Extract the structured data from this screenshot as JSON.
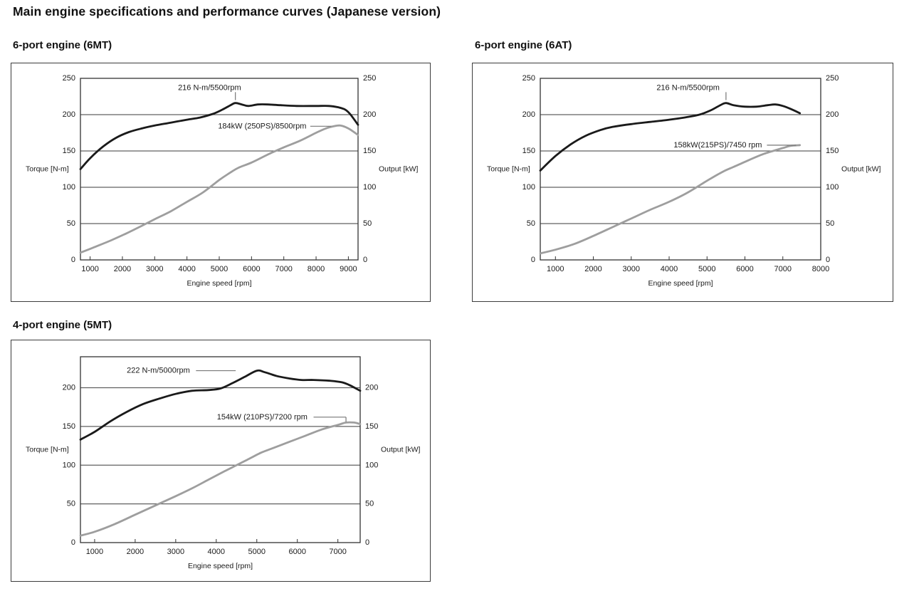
{
  "page": {
    "title": "Main engine specifications and performance curves (Japanese version)"
  },
  "colors": {
    "torque_curve": "#1a1a1a",
    "power_curve": "#9e9e9e",
    "grid": "#606060",
    "axis": "#333333",
    "leader": "#777777",
    "text": "#1a1a1a"
  },
  "chart_data": [
    {
      "type": "line",
      "title": "6-port engine (6MT)",
      "xlabel": "Engine speed [rpm]",
      "ylabel_left": "Torque [N-m]",
      "ylabel_right": "Output [kW]",
      "xlim": [
        700,
        9300
      ],
      "ylim": [
        0,
        250
      ],
      "x_ticks": [
        1000,
        2000,
        3000,
        4000,
        5000,
        6000,
        7000,
        8000,
        9000
      ],
      "y_ticks": [
        0,
        50,
        100,
        150,
        200,
        250
      ],
      "grid": "horizontal",
      "annotations": [
        {
          "name": "torque-peak-label",
          "text": "216 N-m/5500rpm",
          "label": {
            "rpm": 4700,
            "value": 237,
            "anchor": "middle"
          },
          "lines": [
            [
              [
                5500,
                231
              ],
              [
                5500,
                220
              ]
            ]
          ]
        },
        {
          "name": "power-peak-label",
          "text": "184kW (250PS)/8500rpm",
          "label": {
            "rpm": 7700,
            "value": 184,
            "anchor": "end"
          },
          "lines": [
            [
              [
                7820,
                184
              ],
              [
                8470,
                184
              ]
            ]
          ]
        }
      ],
      "series": [
        {
          "name": "torque",
          "unit": "N-m",
          "points": [
            [
              700,
              125
            ],
            [
              1000,
              140
            ],
            [
              1400,
              156
            ],
            [
              1800,
              168
            ],
            [
              2200,
              176
            ],
            [
              2600,
              181
            ],
            [
              3000,
              185
            ],
            [
              3500,
              189
            ],
            [
              4000,
              193
            ],
            [
              4400,
              196
            ],
            [
              4800,
              201
            ],
            [
              5100,
              207
            ],
            [
              5350,
              213
            ],
            [
              5500,
              216
            ],
            [
              5700,
              214
            ],
            [
              5900,
              212
            ],
            [
              6200,
              214
            ],
            [
              6500,
              214
            ],
            [
              6900,
              213
            ],
            [
              7400,
              212
            ],
            [
              8000,
              212
            ],
            [
              8400,
              212
            ],
            [
              8700,
              210
            ],
            [
              8900,
              207
            ],
            [
              9050,
              201
            ],
            [
              9300,
              186
            ]
          ]
        },
        {
          "name": "power",
          "unit": "kW",
          "points": [
            [
              700,
              10
            ],
            [
              1100,
              17
            ],
            [
              1600,
              26
            ],
            [
              2100,
              36
            ],
            [
              2600,
              47
            ],
            [
              3000,
              56
            ],
            [
              3500,
              67
            ],
            [
              4000,
              80
            ],
            [
              4500,
              93
            ],
            [
              5000,
              110
            ],
            [
              5300,
              119
            ],
            [
              5600,
              127
            ],
            [
              6000,
              134
            ],
            [
              6500,
              145
            ],
            [
              7000,
              155
            ],
            [
              7500,
              164
            ],
            [
              8000,
              175
            ],
            [
              8300,
              181
            ],
            [
              8550,
              184
            ],
            [
              8750,
              185
            ],
            [
              9000,
              181
            ],
            [
              9300,
              172
            ]
          ]
        }
      ]
    },
    {
      "type": "line",
      "title": "6-port engine (6AT)",
      "xlabel": "Engine speed [rpm]",
      "ylabel_left": "Torque [N-m]",
      "ylabel_right": "Output [kW]",
      "xlim": [
        600,
        8000
      ],
      "ylim": [
        0,
        250
      ],
      "x_ticks": [
        1000,
        2000,
        3000,
        4000,
        5000,
        6000,
        7000,
        8000
      ],
      "y_ticks": [
        0,
        50,
        100,
        150,
        200,
        250
      ],
      "grid": "horizontal",
      "annotations": [
        {
          "name": "torque-peak-label",
          "text": "216 N-m/5500rpm",
          "label": {
            "rpm": 4500,
            "value": 237,
            "anchor": "middle"
          },
          "lines": [
            [
              [
                5500,
                231
              ],
              [
                5500,
                220
              ]
            ]
          ]
        },
        {
          "name": "power-peak-label",
          "text": "158kW(215PS)/7450 rpm",
          "label": {
            "rpm": 6450,
            "value": 158,
            "anchor": "end"
          },
          "lines": [
            [
              [
                6580,
                158
              ],
              [
                7350,
                158
              ]
            ]
          ]
        }
      ],
      "series": [
        {
          "name": "torque",
          "unit": "N-m",
          "points": [
            [
              600,
              123
            ],
            [
              1000,
              143
            ],
            [
              1400,
              159
            ],
            [
              1800,
              171
            ],
            [
              2200,
              179
            ],
            [
              2500,
              183
            ],
            [
              3000,
              187
            ],
            [
              3500,
              190
            ],
            [
              4000,
              193
            ],
            [
              4400,
              196
            ],
            [
              4800,
              200
            ],
            [
              5100,
              206
            ],
            [
              5350,
              213
            ],
            [
              5500,
              216
            ],
            [
              5700,
              213
            ],
            [
              6000,
              211
            ],
            [
              6300,
              211
            ],
            [
              6600,
              213
            ],
            [
              6800,
              214
            ],
            [
              7000,
              212
            ],
            [
              7200,
              208
            ],
            [
              7450,
              202
            ]
          ]
        },
        {
          "name": "power",
          "unit": "kW",
          "points": [
            [
              600,
              9
            ],
            [
              1000,
              14
            ],
            [
              1500,
              22
            ],
            [
              2000,
              33
            ],
            [
              2500,
              45
            ],
            [
              3000,
              57
            ],
            [
              3500,
              69
            ],
            [
              4000,
              80
            ],
            [
              4500,
              93
            ],
            [
              5000,
              109
            ],
            [
              5400,
              121
            ],
            [
              5700,
              128
            ],
            [
              6000,
              135
            ],
            [
              6500,
              146
            ],
            [
              7000,
              154
            ],
            [
              7200,
              157
            ],
            [
              7450,
              158
            ]
          ]
        }
      ]
    },
    {
      "type": "line",
      "title": "4-port engine (5MT)",
      "xlabel": "Engine speed [rpm]",
      "ylabel_left": "Torque [N-m]",
      "ylabel_right": "Output [kW]",
      "xlim": [
        650,
        7550
      ],
      "ylim": [
        0,
        240
      ],
      "x_ticks": [
        1000,
        2000,
        3000,
        4000,
        5000,
        6000,
        7000
      ],
      "y_ticks": [
        0,
        50,
        100,
        150,
        200
      ],
      "grid": "horizontal",
      "annotations": [
        {
          "name": "torque-peak-label",
          "text": "222 N-m/5000rpm",
          "label": {
            "rpm": 3350,
            "value": 222,
            "anchor": "end"
          },
          "lines": [
            [
              [
                3500,
                222
              ],
              [
                4480,
                222
              ]
            ]
          ]
        },
        {
          "name": "power-peak-label",
          "text": "154kW (210PS)/7200 rpm",
          "label": {
            "rpm": 6250,
            "value": 162,
            "anchor": "end"
          },
          "lines": [
            [
              [
                6400,
                162
              ],
              [
                7200,
                162
              ]
            ],
            [
              [
                7200,
                162
              ],
              [
                7200,
                156
              ]
            ]
          ]
        }
      ],
      "series": [
        {
          "name": "torque",
          "unit": "N-m",
          "points": [
            [
              650,
              133
            ],
            [
              1000,
              143
            ],
            [
              1400,
              157
            ],
            [
              1800,
              169
            ],
            [
              2200,
              179
            ],
            [
              2600,
              186
            ],
            [
              3000,
              192
            ],
            [
              3400,
              196
            ],
            [
              3800,
              197
            ],
            [
              4100,
              199
            ],
            [
              4400,
              206
            ],
            [
              4700,
              214
            ],
            [
              5000,
              222
            ],
            [
              5200,
              220
            ],
            [
              5500,
              215
            ],
            [
              5800,
              212
            ],
            [
              6100,
              210
            ],
            [
              6400,
              210
            ],
            [
              6800,
              209
            ],
            [
              7100,
              207
            ],
            [
              7300,
              203
            ],
            [
              7550,
              196
            ]
          ]
        },
        {
          "name": "power",
          "unit": "kW",
          "points": [
            [
              650,
              9
            ],
            [
              1000,
              14
            ],
            [
              1500,
              24
            ],
            [
              2000,
              36
            ],
            [
              2500,
              48
            ],
            [
              3000,
              60
            ],
            [
              3400,
              70
            ],
            [
              3800,
              81
            ],
            [
              4200,
              92
            ],
            [
              4500,
              100
            ],
            [
              4800,
              108
            ],
            [
              5100,
              116
            ],
            [
              5400,
              122
            ],
            [
              5800,
              130
            ],
            [
              6200,
              138
            ],
            [
              6600,
              146
            ],
            [
              7000,
              152
            ],
            [
              7200,
              155
            ],
            [
              7400,
              155
            ],
            [
              7550,
              153
            ]
          ]
        }
      ]
    }
  ]
}
